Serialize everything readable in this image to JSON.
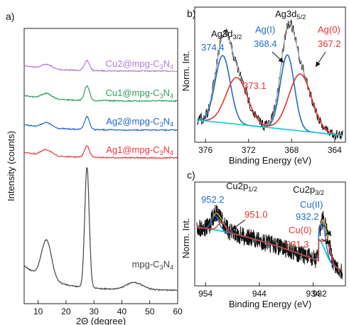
{
  "panel_labels": {
    "a": "a)",
    "b": "b)",
    "c": "c)"
  },
  "chart_data": [
    {
      "panel": "a",
      "type": "line",
      "xlabel": "2Θ (degree)",
      "ylabel": "Intensity (counts)",
      "xlim": [
        5,
        60
      ],
      "xticks": [
        10,
        20,
        30,
        40,
        50,
        60
      ],
      "y_ticks_shown": false,
      "series": [
        {
          "name": "Cu2@mpg-C₃N₄",
          "color": "#b57bd8",
          "peaks_deg": [
            13.0,
            27.5
          ]
        },
        {
          "name": "Cu1@mpg-C₃N₄",
          "color": "#2e9e63",
          "peaks_deg": [
            13.0,
            27.5
          ]
        },
        {
          "name": "Ag2@mpg-C₃N₄",
          "color": "#2166c2",
          "peaks_deg": [
            13.0,
            27.5
          ]
        },
        {
          "name": "Ag1@mpg-C₃N₄",
          "color": "#e8373f",
          "peaks_deg": [
            13.0,
            27.5
          ]
        },
        {
          "name": "mpg-C₃N₄",
          "color": "#444444",
          "peaks_deg": [
            13.0,
            27.5
          ]
        }
      ]
    },
    {
      "panel": "b",
      "type": "line",
      "xlabel": "Binding Energy (eV)",
      "ylabel": "Norm. Int.",
      "xlim": [
        377,
        363
      ],
      "xticks": [
        376,
        372,
        368,
        364
      ],
      "reversed_x": true,
      "headers": [
        {
          "text": "Ag3d3/2",
          "main": "Ag3d",
          "sub": "3/2"
        },
        {
          "text": "Ag3d5/2",
          "main": "Ag3d",
          "sub": "5/2"
        }
      ],
      "annotations": [
        {
          "text": "374.4",
          "color": "#1f6cc7"
        },
        {
          "text": "373.1",
          "color": "#e3342f"
        },
        {
          "text": "Ag(I)",
          "color": "#1f6cc7"
        },
        {
          "text": "368.4",
          "color": "#1f6cc7"
        },
        {
          "text": "Ag(0)",
          "color": "#e3342f"
        },
        {
          "text": "367.2",
          "color": "#e3342f"
        }
      ],
      "components": [
        {
          "label": "Ag(I)",
          "color": "#1f6cc7",
          "peaks_eV": [
            374.4,
            368.4
          ]
        },
        {
          "label": "Ag(0)",
          "color": "#e3342f",
          "peaks_eV": [
            373.1,
            367.2
          ]
        }
      ]
    },
    {
      "panel": "c",
      "type": "line",
      "xlabel": "Binding Energy (eV)",
      "ylabel": "Norm. Int.",
      "xlim": [
        956,
        928
      ],
      "xticks": [
        954,
        944,
        934
      ],
      "extra_xtick_labels": [
        "932"
      ],
      "reversed_x": true,
      "headers": [
        {
          "text": "Cu2p1/2",
          "main": "Cu2p",
          "sub": "1/2"
        },
        {
          "text": "Cu2p3/2",
          "main": "Cu2p",
          "sub": "3/2"
        }
      ],
      "annotations": [
        {
          "text": "952.2",
          "color": "#1f6cc7"
        },
        {
          "text": "951.0",
          "color": "#e3342f"
        },
        {
          "text": "Cu(II)",
          "color": "#1f6cc7"
        },
        {
          "text": "932.2",
          "color": "#1f6cc7"
        },
        {
          "text": "Cu(0)",
          "color": "#e3342f"
        },
        {
          "text": "931.3",
          "color": "#e3342f"
        }
      ],
      "components": [
        {
          "label": "Cu(II)",
          "color": "#1f6cc7",
          "peaks_eV": [
            952.2,
            932.2
          ]
        },
        {
          "label": "Cu(0)",
          "color": "#e3342f",
          "peaks_eV": [
            951.0,
            931.3
          ]
        }
      ]
    }
  ]
}
